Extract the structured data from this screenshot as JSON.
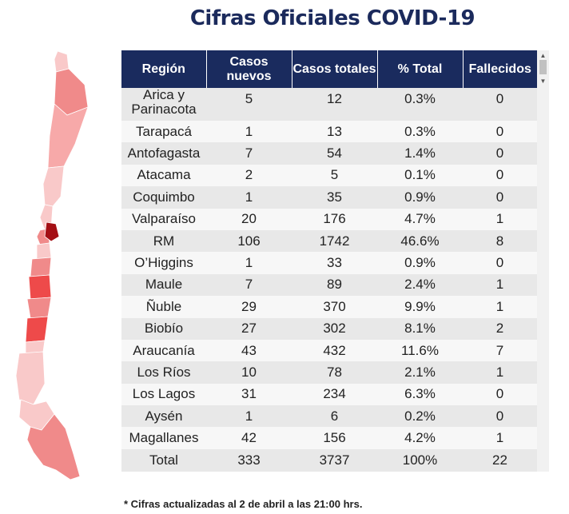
{
  "title": "Cifras Oficiales COVID-19",
  "colors": {
    "header_bg": "#1a2b5e",
    "title": "#1b2a5c",
    "row_odd": "#e8e8e8",
    "row_even": "#f7f7f7",
    "map_light": "#f9c9c9",
    "map_mid": "#f08a8a",
    "map_strong": "#ee4a4a",
    "map_dark": "#a40f14"
  },
  "table": {
    "headers": [
      "Región",
      "Casos nuevos",
      "Casos totales",
      "% Total",
      "Fallecidos"
    ],
    "rows": [
      [
        "Arica y Parinacota",
        "5",
        "12",
        "0.3%",
        "0"
      ],
      [
        "Tarapacá",
        "1",
        "13",
        "0.3%",
        "0"
      ],
      [
        "Antofagasta",
        "7",
        "54",
        "1.4%",
        "0"
      ],
      [
        "Atacama",
        "2",
        "5",
        "0.1%",
        "0"
      ],
      [
        "Coquimbo",
        "1",
        "35",
        "0.9%",
        "0"
      ],
      [
        "Valparaíso",
        "20",
        "176",
        "4.7%",
        "1"
      ],
      [
        "RM",
        "106",
        "1742",
        "46.6%",
        "8"
      ],
      [
        "O’Higgins",
        "1",
        "33",
        "0.9%",
        "0"
      ],
      [
        "Maule",
        "7",
        "89",
        "2.4%",
        "1"
      ],
      [
        "Ñuble",
        "29",
        "370",
        "9.9%",
        "1"
      ],
      [
        "Biobío",
        "27",
        "302",
        "8.1%",
        "2"
      ],
      [
        "Araucanía",
        "43",
        "432",
        "11.6%",
        "7"
      ],
      [
        "Los Ríos",
        "10",
        "78",
        "2.1%",
        "1"
      ],
      [
        "Los Lagos",
        "31",
        "234",
        "6.3%",
        "0"
      ],
      [
        "Aysén",
        "1",
        "6",
        "0.2%",
        "0"
      ],
      [
        "Magallanes",
        "42",
        "156",
        "4.2%",
        "1"
      ]
    ],
    "total": [
      "Total",
      "333",
      "3737",
      "100%",
      "22"
    ]
  },
  "footnote": "* Cifras actualizadas al 2 de abril a las 21:00 hrs."
}
